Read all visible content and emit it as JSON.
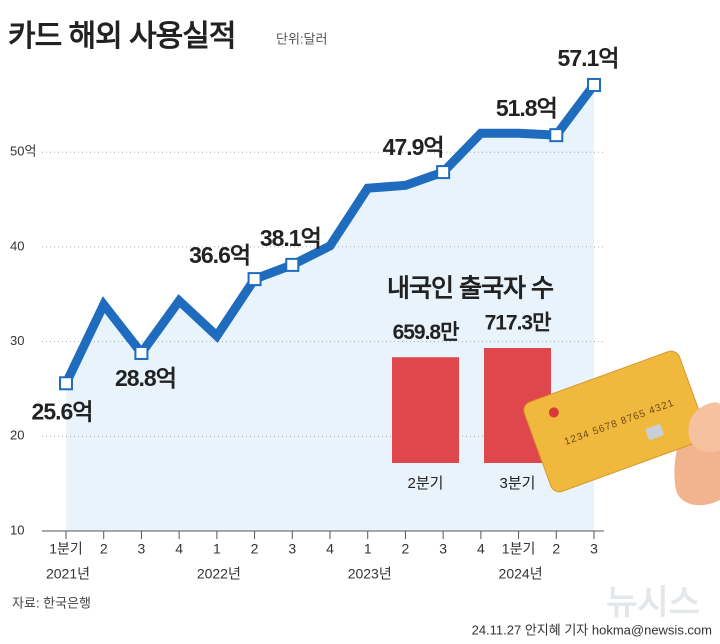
{
  "chart_data": [
    {
      "type": "line",
      "title": "카드 해외 사용실적",
      "subtitle": "단위:달러",
      "categories": [
        "1분기",
        "2",
        "3",
        "4",
        "1",
        "2",
        "3",
        "4",
        "1",
        "2",
        "3",
        "4",
        "1분기",
        "2",
        "3"
      ],
      "x_groups": [
        "2021년",
        "2022년",
        "2023년",
        "2024년"
      ],
      "values": [
        25.6,
        33.9,
        28.8,
        34.3,
        30.6,
        36.6,
        38.1,
        40.1,
        46.2,
        46.5,
        47.9,
        52.0,
        52.0,
        51.8,
        57.1
      ],
      "value_labels": [
        "25.6억",
        null,
        "28.8억",
        null,
        null,
        "36.6억",
        "38.1억",
        null,
        null,
        null,
        "47.9억",
        null,
        null,
        "51.8억",
        "57.1억"
      ],
      "color": "#1f6cbf",
      "fill": "#e8f3fb",
      "ylim": [
        10,
        60
      ],
      "yticks": [
        10,
        20,
        30,
        40,
        {
          "value": 50,
          "label": "50억"
        }
      ],
      "grid": true
    },
    {
      "type": "bar",
      "title": "내국인 출국자 수",
      "categories": [
        "2분기",
        "3분기"
      ],
      "values": [
        659.8,
        717.3
      ],
      "value_labels": [
        "659.8만",
        "717.3만"
      ],
      "color": "#e0474c"
    }
  ],
  "source": "자료: 한국은행",
  "credit": "24.11.27 안지혜 기자 hokma@newsis.com",
  "watermark": "뉴시스",
  "card_number": "1234 5678 8765 4321"
}
